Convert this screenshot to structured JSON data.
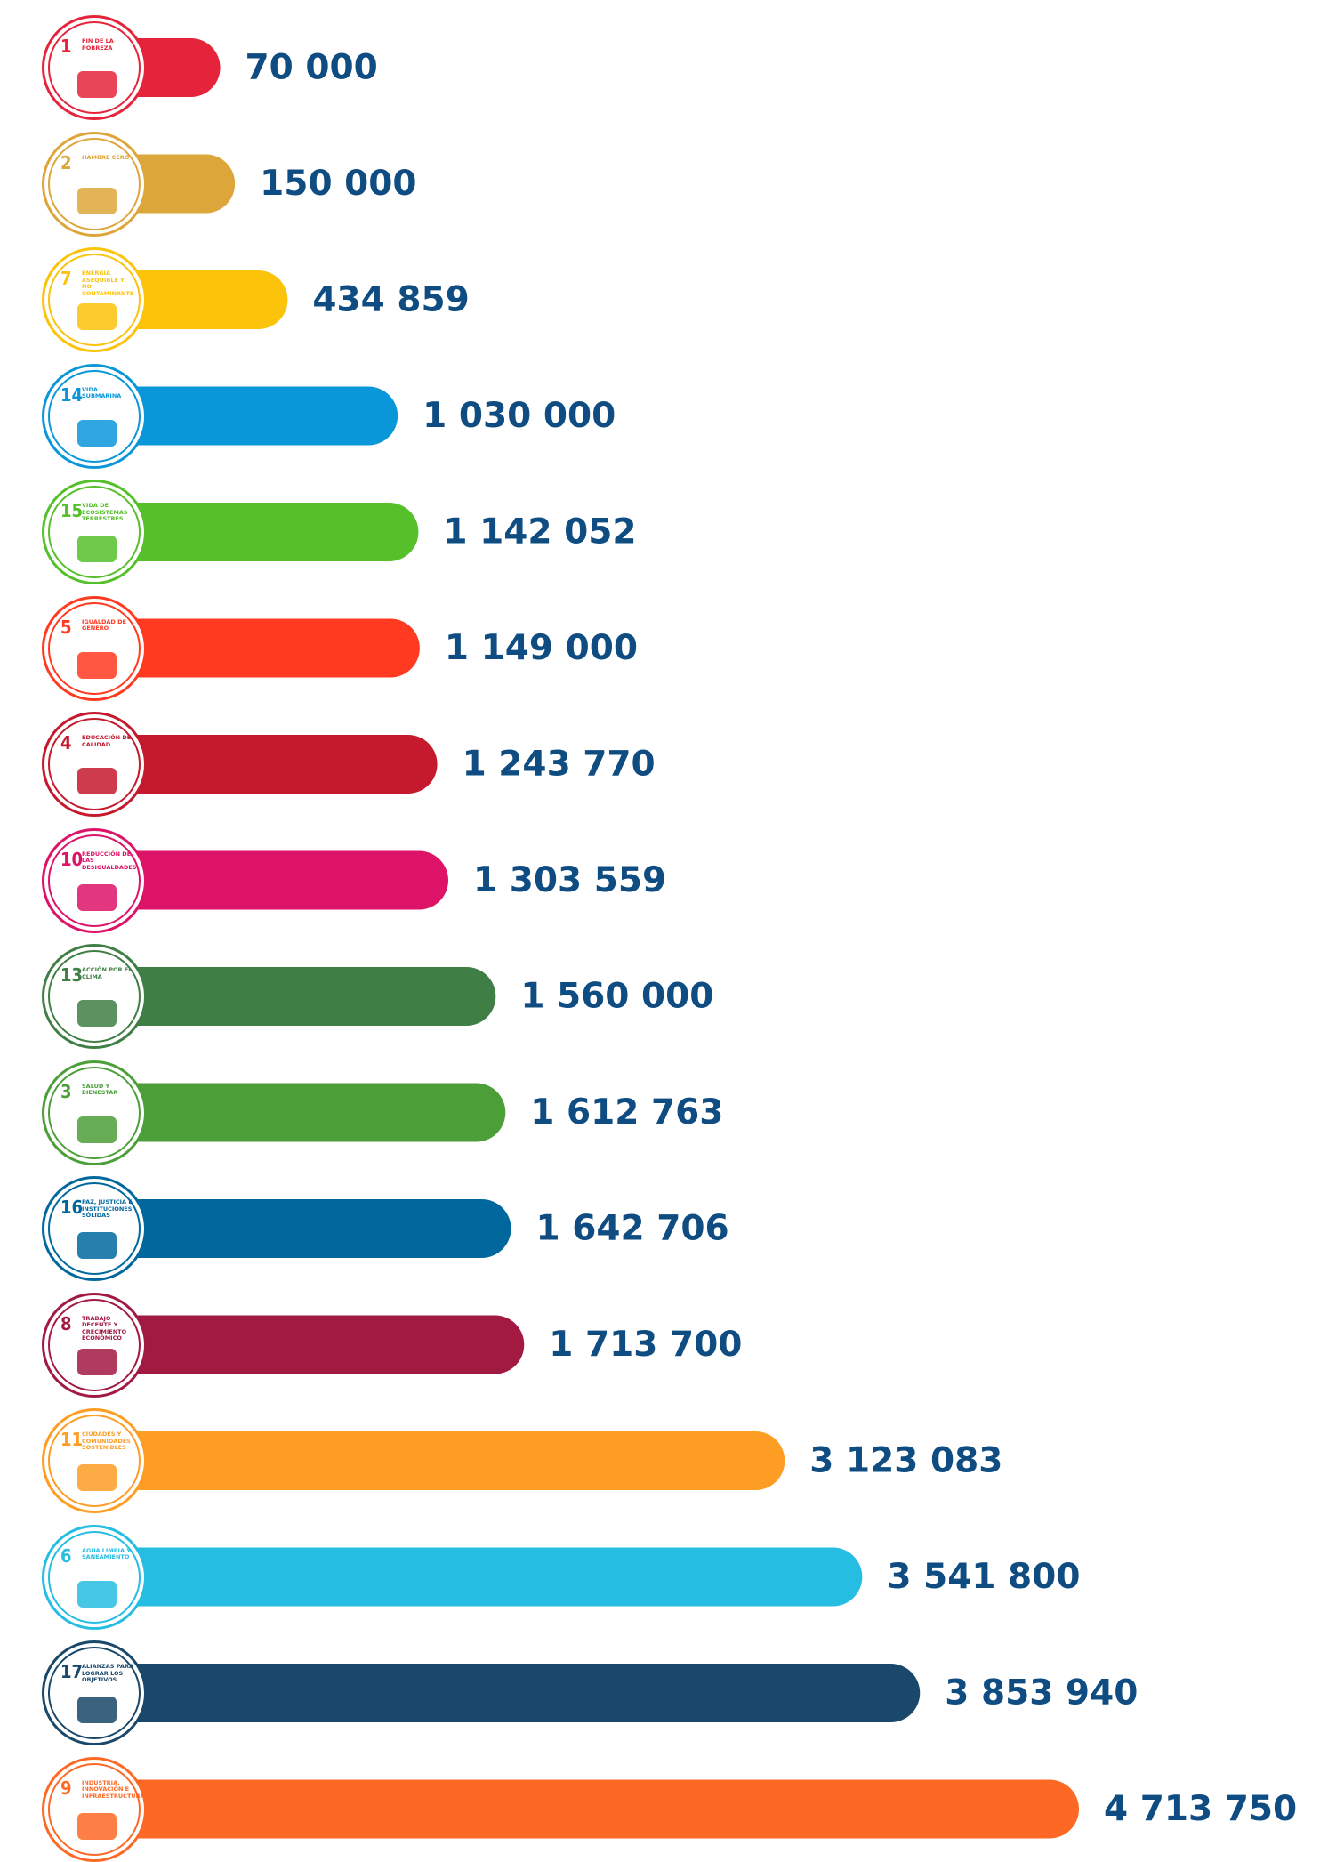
{
  "chart_data": {
    "type": "bar",
    "goals": [
      1,
      2,
      7,
      14,
      15,
      5,
      4,
      10,
      13,
      3,
      16,
      8,
      11,
      6,
      17,
      9
    ],
    "categories": [
      "FIN DE LA POBREZA",
      "HAMBRE CERO",
      "ENERGÍA ASEQUIBLE Y NO CONTAMINANTE",
      "VIDA SUBMARINA",
      "VIDA DE ECOSISTEMAS TERRESTRES",
      "IGUALDAD DE GÉNERO",
      "EDUCACIÓN DE CALIDAD",
      "REDUCCIÓN DE LAS DESIGUALDADES",
      "ACCIÓN POR EL CLIMA",
      "SALUD Y BIENESTAR",
      "PAZ, JUSTICIA E INSTITUCIONES SÓLIDAS",
      "TRABAJO DECENTE Y CRECIMIENTO ECONÓMICO",
      "CIUDADES Y COMUNIDADES SOSTENIBLES",
      "AGUA LIMPIA Y SANEAMIENTO",
      "ALIANZAS PARA LOGRAR LOS OBJETIVOS",
      "INDUSTRIA, INNOVACIÓN E INFRAESTRUCTURA"
    ],
    "values": [
      70000,
      150000,
      434859,
      1030000,
      1142052,
      1149000,
      1243770,
      1303559,
      1560000,
      1612763,
      1642706,
      1713700,
      3123083,
      3541800,
      3853940,
      4713750
    ],
    "value_labels": [
      "70 000",
      "150 000",
      "434 859",
      "1 030 000",
      "1 142 052",
      "1 149 000",
      "1 243 770",
      "1 303 559",
      "1 560 000",
      "1 612 763",
      "1 642 706",
      "1 713 700",
      "3 123 083",
      "3 541 800",
      "3 853 940",
      "4 713 750"
    ],
    "colors": [
      "#e5243b",
      "#dda63a",
      "#fcc30b",
      "#0a97d9",
      "#56c02b",
      "#ff3a21",
      "#c5192d",
      "#dd1367",
      "#3f7e44",
      "#4c9f38",
      "#00689d",
      "#a21942",
      "#fd9d24",
      "#26bde2",
      "#19486a",
      "#fd6925"
    ],
    "label_color": "#0f4c81"
  }
}
